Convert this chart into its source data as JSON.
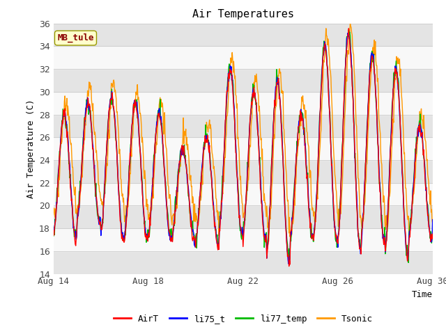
{
  "title": "Air Temperatures",
  "xlabel": "Time",
  "ylabel": "Air Temperature (C)",
  "ylim": [
    14,
    36
  ],
  "yticks": [
    14,
    16,
    18,
    20,
    22,
    24,
    26,
    28,
    30,
    32,
    34,
    36
  ],
  "xtick_labels": [
    "Aug 14",
    "Aug 18",
    "Aug 22",
    "Aug 26",
    "Aug 30"
  ],
  "xtick_positions": [
    0,
    4,
    8,
    12,
    16
  ],
  "annotation_text": "MB_tule",
  "annotation_color": "#8b0000",
  "annotation_bg": "#ffffcc",
  "annotation_border": "#999900",
  "colors": {
    "AirT": "#ff0000",
    "li75_t": "#0000ff",
    "li77_temp": "#00bb00",
    "Tsonic": "#ff9900"
  },
  "grid_color": "#cccccc",
  "bg_color": "#f0f0f0",
  "stripe_light": "#f8f8f8",
  "stripe_dark": "#e4e4e4",
  "font_family": "monospace"
}
